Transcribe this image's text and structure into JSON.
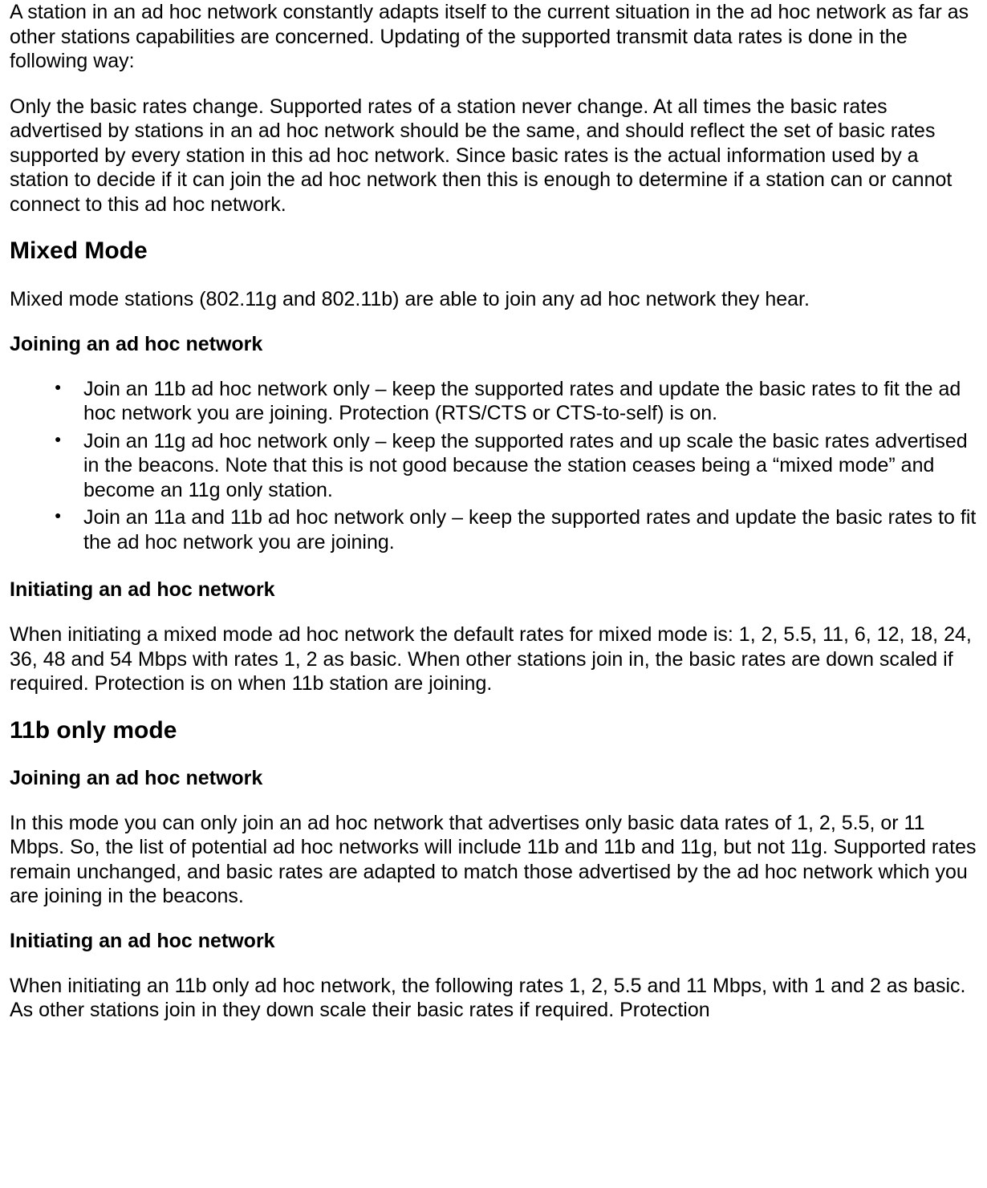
{
  "intro": {
    "p1": "A station in an ad hoc network constantly adapts itself to the current situation in the ad hoc network as far as other stations capabilities are concerned. Updating of the supported transmit data rates is done in the following way:",
    "p2": "Only the basic rates change. Supported rates of a station never change. At all times the basic rates advertised by stations in an ad hoc network should be the same, and should reflect the set of basic rates supported by every station in this ad hoc network. Since basic rates is the actual information used by a station to decide if it can join the ad hoc network then this is enough to determine if a station can or cannot connect to this ad hoc network."
  },
  "mixed": {
    "heading": "Mixed Mode",
    "intro": "Mixed mode stations (802.11g and 802.11b) are able to join any ad hoc network they hear.",
    "join_heading": "Joining an ad hoc network",
    "bullets": [
      "Join an 11b ad hoc network only – keep the supported rates and update the basic rates to fit the ad hoc network you are joining. Protection (RTS/CTS or CTS-to-self) is on.",
      "Join an 11g ad hoc network only – keep the supported rates and up scale the basic rates advertised in the beacons. Note that this is not good because the station ceases being a “mixed mode” and become an 11g only station.",
      "Join an 11a and 11b ad hoc network only – keep the supported rates and update the basic rates to fit the ad hoc network you are joining."
    ],
    "init_heading": "Initiating an ad hoc network",
    "init_text": "When initiating a mixed mode ad hoc network the default rates for mixed mode is: 1, 2, 5.5, 11, 6, 12, 18, 24, 36, 48 and 54 Mbps with rates 1, 2 as basic. When other stations join in, the basic rates are down scaled if required. Protection is on when 11b station are joining."
  },
  "elevenb": {
    "heading": "11b only mode",
    "join_heading": "Joining an ad hoc network",
    "join_text": "In this mode you can only join an ad hoc network that advertises only basic data rates of 1, 2, 5.5, or 11 Mbps. So, the list of potential ad hoc networks will include 11b and 11b and 11g, but not 11g. Supported rates remain unchanged, and basic rates are adapted to match those advertised by the ad hoc network which you are joining in the beacons.",
    "init_heading": "Initiating an ad hoc network",
    "init_text": "When initiating an 11b only ad hoc network, the following rates 1, 2, 5.5 and 11 Mbps, with 1 and 2 as basic. As other stations join in they down scale their basic rates if required. Protection"
  }
}
